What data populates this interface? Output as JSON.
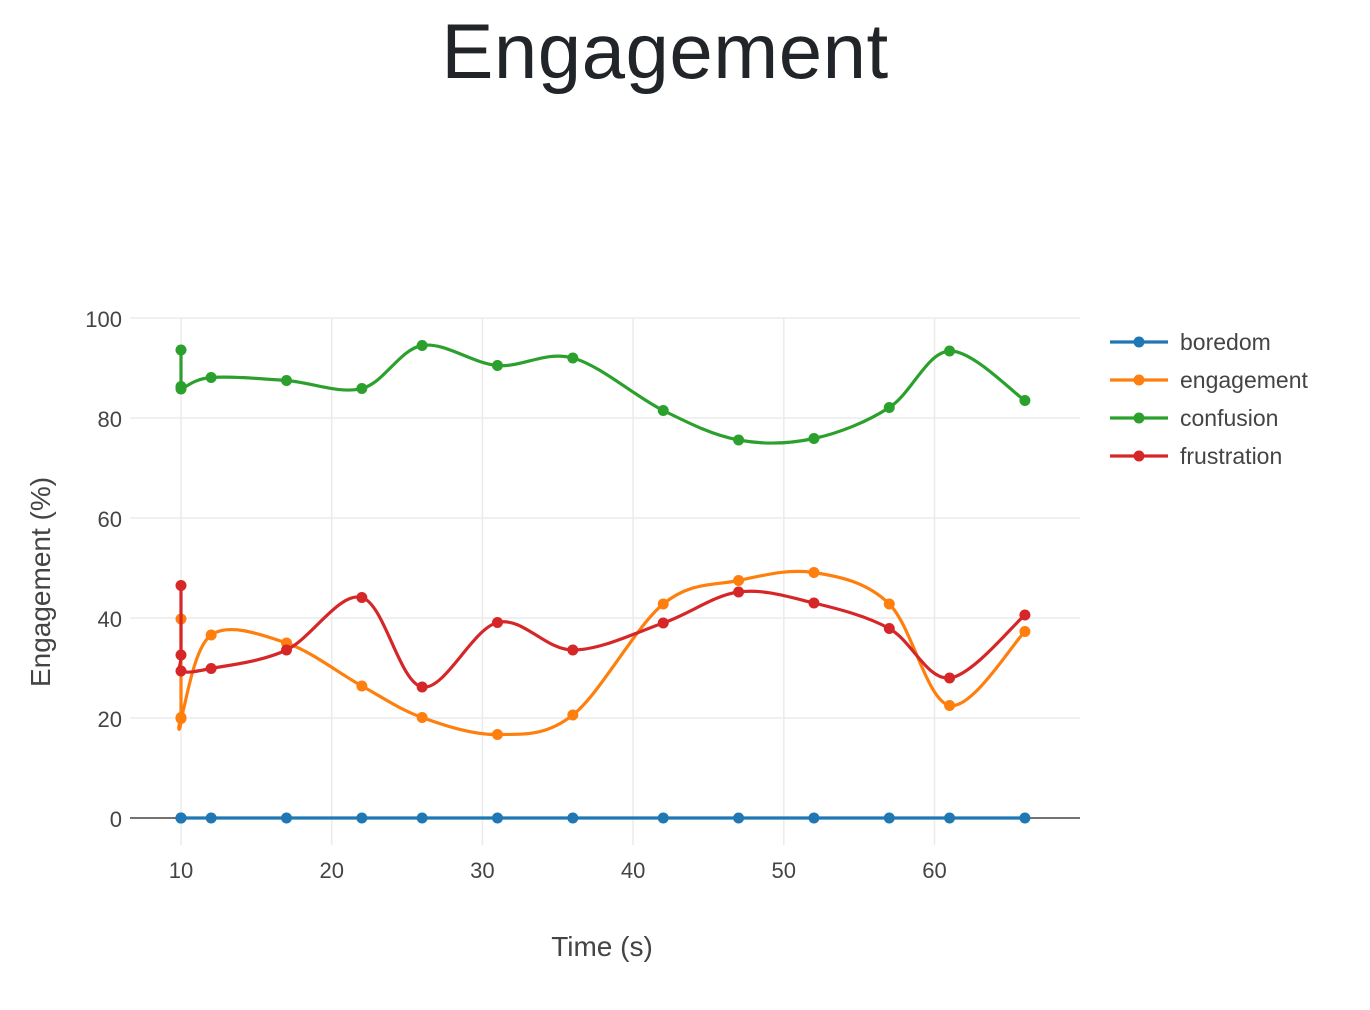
{
  "page": {
    "title": "Engagement"
  },
  "chart_data": {
    "type": "line",
    "title": "",
    "xlabel": "Time (s)",
    "ylabel": "Engagement (%)",
    "xlim": [
      6.7,
      69.2
    ],
    "ylim": [
      -5.5,
      100
    ],
    "x_ticks": [
      10,
      20,
      30,
      40,
      50,
      60
    ],
    "y_ticks": [
      0,
      20,
      40,
      60,
      80,
      100
    ],
    "grid": true,
    "line_shape": "spline",
    "legend_position": "top-right",
    "series": [
      {
        "name": "boredom",
        "color": "#1f77b4",
        "x": [
          10,
          10,
          10,
          12,
          17,
          22,
          26,
          31,
          36,
          42,
          47,
          52,
          57,
          61,
          66
        ],
        "y": [
          0,
          0,
          0,
          0,
          0,
          0,
          0,
          0,
          0,
          0,
          0,
          0,
          0,
          0,
          0
        ]
      },
      {
        "name": "engagement",
        "color": "#ff7f0e",
        "x": [
          10,
          10,
          10,
          12,
          17,
          22,
          26,
          31,
          36,
          42,
          47,
          52,
          57,
          61,
          66
        ],
        "y": [
          39.8,
          20.1,
          19.9,
          36.6,
          35.0,
          26.4,
          20.1,
          16.7,
          20.6,
          42.8,
          47.5,
          49.1,
          42.8,
          22.5,
          37.3
        ]
      },
      {
        "name": "confusion",
        "color": "#2ca02c",
        "x": [
          10,
          10,
          10,
          12,
          17,
          22,
          26,
          31,
          36,
          42,
          47,
          52,
          57,
          61,
          66
        ],
        "y": [
          93.6,
          86.3,
          85.8,
          88.1,
          87.5,
          85.9,
          94.5,
          90.5,
          92.0,
          81.5,
          75.6,
          75.9,
          82.1,
          93.4,
          83.5
        ]
      },
      {
        "name": "frustration",
        "color": "#d62728",
        "x": [
          10,
          10,
          10,
          12,
          17,
          22,
          26,
          31,
          36,
          42,
          47,
          52,
          57,
          61,
          66
        ],
        "y": [
          46.5,
          32.6,
          29.4,
          29.9,
          33.6,
          44.1,
          26.2,
          39.1,
          33.6,
          39.0,
          45.2,
          43.0,
          37.9,
          28.0,
          40.6
        ]
      }
    ]
  }
}
